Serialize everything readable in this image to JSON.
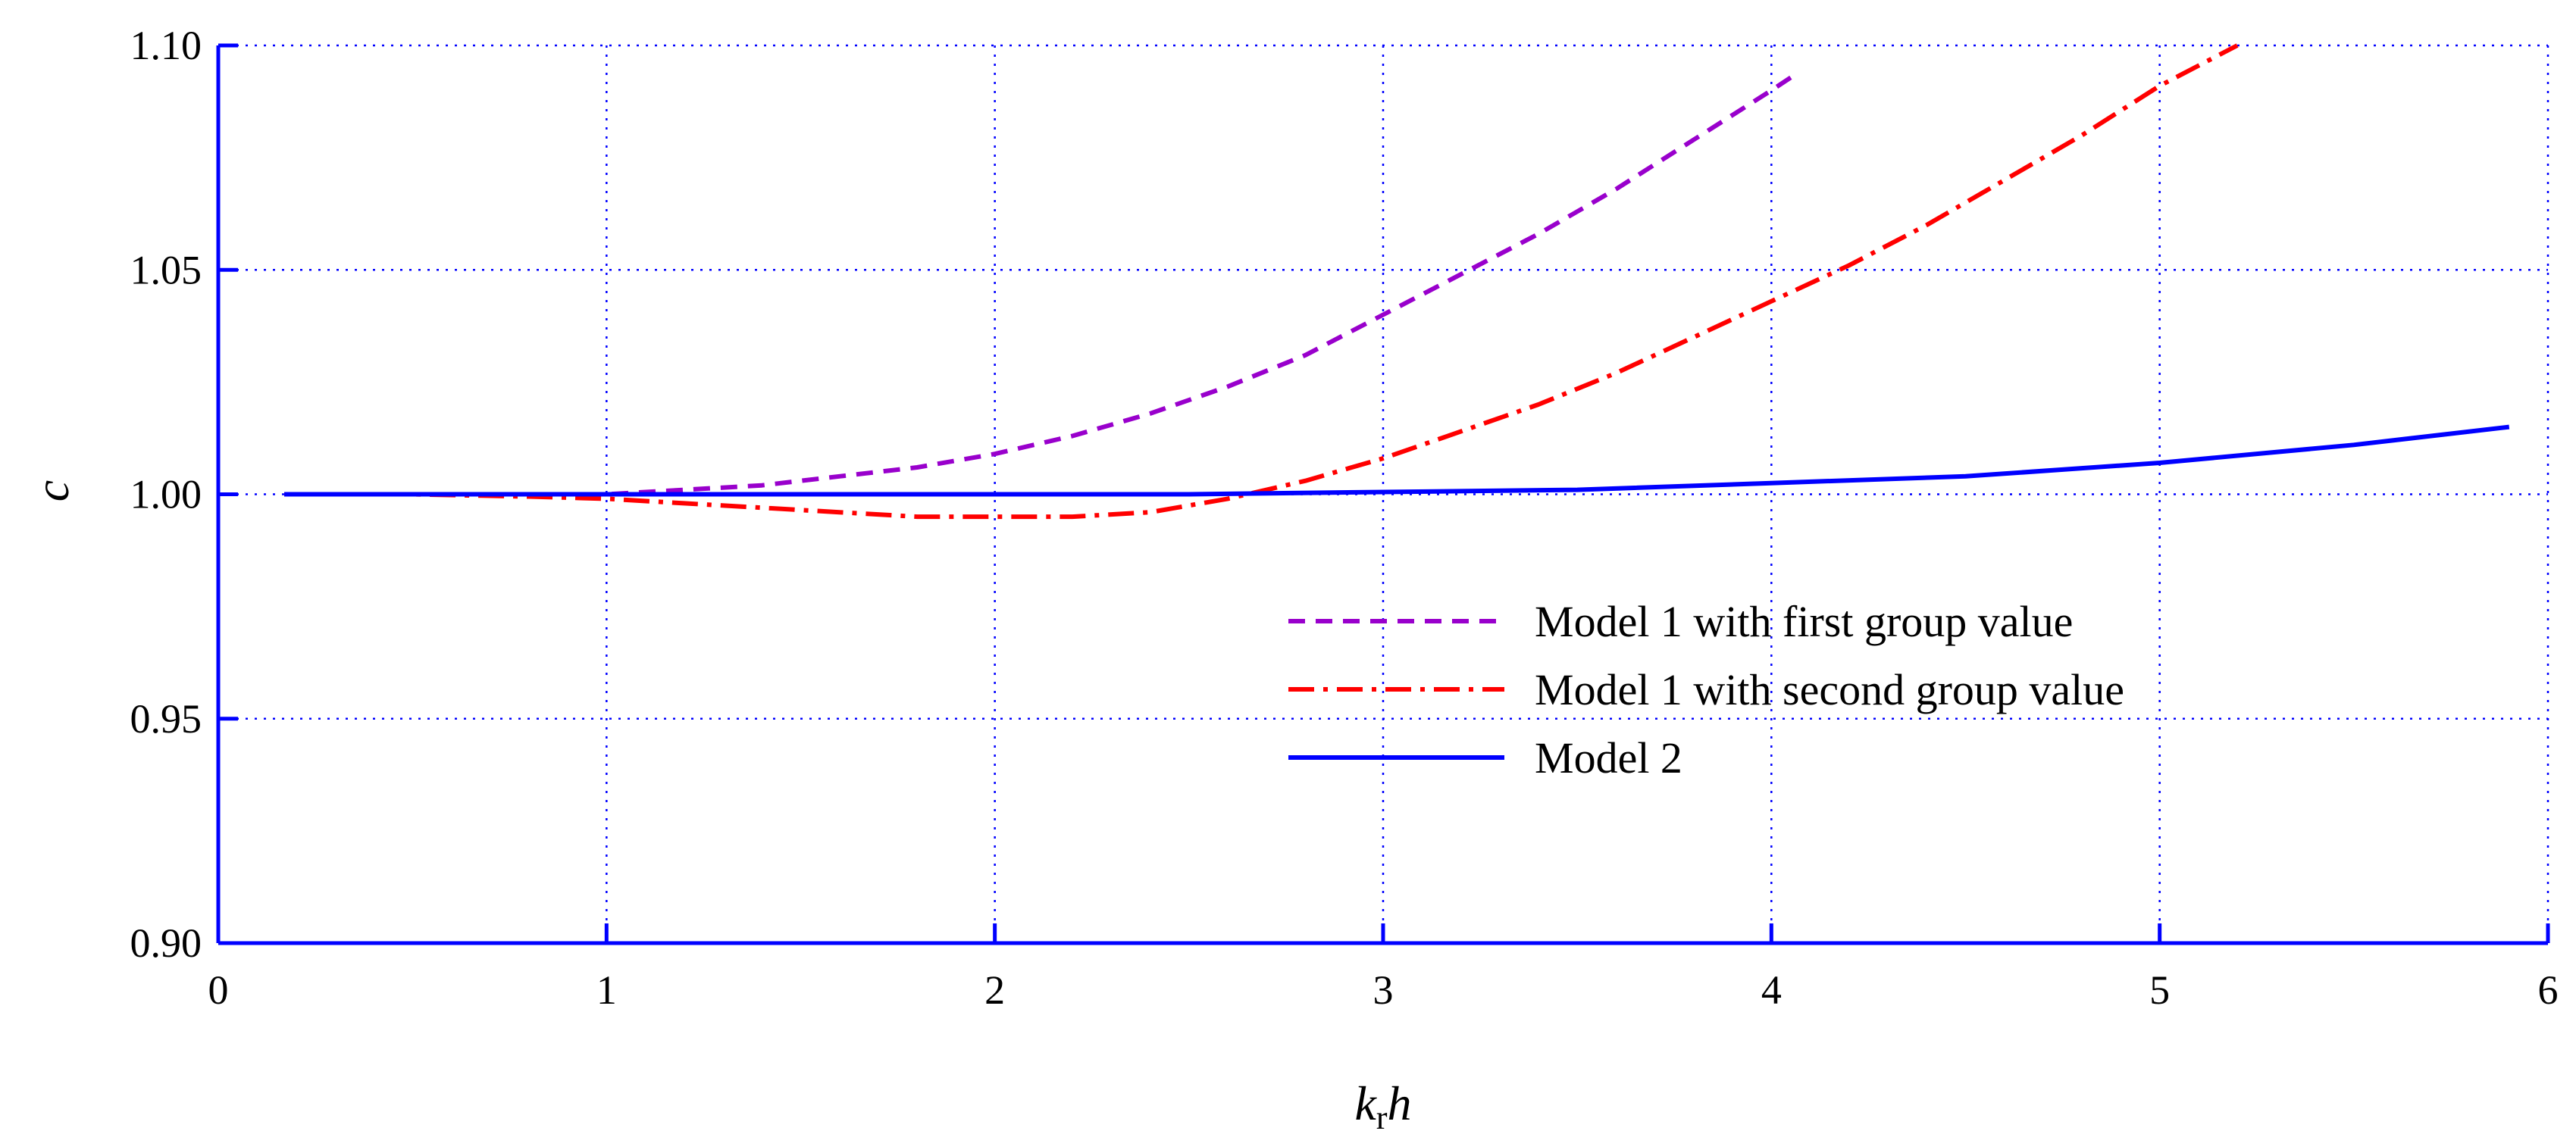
{
  "chart_data": {
    "type": "line",
    "xlabel_main": "k",
    "xlabel_sub": "r",
    "xlabel_tail": "h",
    "ylabel": "c",
    "xlim": [
      0,
      6
    ],
    "ylim": [
      0.9,
      1.1
    ],
    "x_ticks": [
      0,
      1,
      2,
      3,
      4,
      5,
      6
    ],
    "x_tick_labels": [
      "0",
      "1",
      "2",
      "3",
      "4",
      "5",
      "6"
    ],
    "y_ticks": [
      0.9,
      0.95,
      1.0,
      1.05,
      1.1
    ],
    "y_tick_labels": [
      "0.90",
      "0.95",
      "1.00",
      "1.05",
      "1.10"
    ],
    "grid": true,
    "legend_position": "center-right",
    "colors": {
      "axis": "#0000ff",
      "grid": "#0000ff"
    },
    "series": [
      {
        "name": "Model 1 with first group value",
        "color": "#9900cc",
        "dash": "dashed",
        "x": [
          0.17,
          0.5,
          0.8,
          1.0,
          1.2,
          1.4,
          1.6,
          1.8,
          2.0,
          2.2,
          2.4,
          2.6,
          2.8,
          3.0,
          3.2,
          3.4,
          3.6,
          3.8,
          4.0,
          4.07
        ],
        "y": [
          1.0,
          1.0,
          1.0,
          1.0,
          1.001,
          1.002,
          1.004,
          1.006,
          1.009,
          1.013,
          1.018,
          1.024,
          1.031,
          1.04,
          1.049,
          1.058,
          1.068,
          1.079,
          1.09,
          1.094
        ]
      },
      {
        "name": "Model 1 with second group value",
        "color": "#ff0000",
        "dash": "dashdot",
        "x": [
          0.17,
          0.5,
          0.8,
          1.0,
          1.2,
          1.4,
          1.6,
          1.8,
          2.0,
          2.2,
          2.4,
          2.6,
          2.8,
          3.0,
          3.2,
          3.4,
          3.6,
          3.8,
          4.0,
          4.2,
          4.4,
          4.6,
          4.8,
          5.0,
          5.2
        ],
        "y": [
          1.0,
          1.0,
          0.9995,
          0.999,
          0.998,
          0.997,
          0.996,
          0.995,
          0.995,
          0.995,
          0.996,
          0.999,
          1.003,
          1.008,
          1.014,
          1.02,
          1.027,
          1.035,
          1.043,
          1.051,
          1.06,
          1.07,
          1.08,
          1.091,
          1.1
        ]
      },
      {
        "name": "Model 2",
        "color": "#0000ff",
        "dash": "solid",
        "x": [
          0.17,
          0.5,
          1.0,
          1.5,
          2.0,
          2.5,
          3.0,
          3.5,
          4.0,
          4.5,
          5.0,
          5.5,
          5.9
        ],
        "y": [
          1.0,
          1.0,
          1.0,
          1.0,
          1.0,
          1.0,
          1.0005,
          1.001,
          1.0025,
          1.004,
          1.007,
          1.011,
          1.015
        ]
      }
    ]
  }
}
